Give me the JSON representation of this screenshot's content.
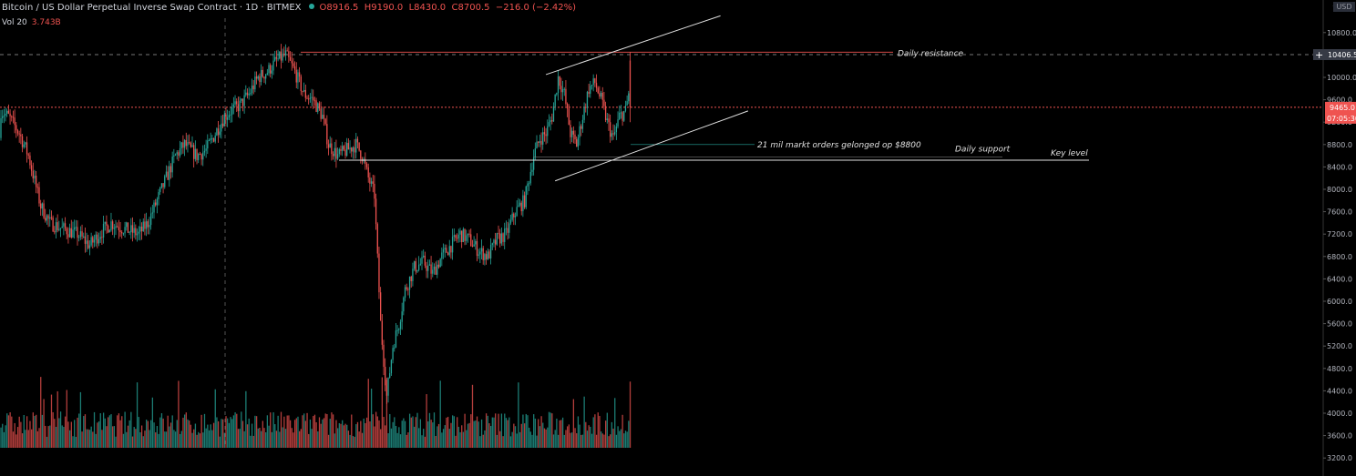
{
  "header": {
    "symbol_title": "Bitcoin / US Dollar Perpetual Inverse Swap Contract · 1D · BITMEX",
    "open": "O8916.5",
    "high": "H9190.0",
    "low": "L8430.0",
    "close": "C8700.5",
    "change": "−216.0 (−2.42%)"
  },
  "volume": {
    "label": "Vol 20",
    "value": "3.743B"
  },
  "currency_badge": "USD",
  "colors": {
    "up": "#26a69a",
    "down": "#ef5350",
    "background": "#000000",
    "line": "#e0e0e0"
  },
  "chart_data": {
    "type": "candlestick",
    "y_ticks": [
      10800.0,
      10400.0,
      10000.0,
      9600.0,
      9200.0,
      8800.0,
      8400.0,
      8000.0,
      7600.0,
      7200.0,
      6800.0,
      6400.0,
      6000.0,
      5600.0,
      5200.0,
      4800.0,
      4400.0,
      4000.0,
      3600.0,
      3200.0
    ],
    "y_tick_top": "1",
    "ylim": [
      3100,
      11200
    ],
    "y_scale": "linear",
    "price_labels": {
      "crosshair": "10406.5",
      "last": "9465.0",
      "countdown": "07:05:30"
    },
    "trend": {
      "start": 8916.5,
      "waypoints": [
        [
          0,
          9400
        ],
        [
          5,
          9300
        ],
        [
          12,
          9000
        ],
        [
          18,
          8600
        ],
        [
          26,
          7700
        ],
        [
          32,
          7400
        ],
        [
          40,
          7300
        ],
        [
          50,
          7200
        ],
        [
          58,
          7000
        ],
        [
          66,
          7250
        ],
        [
          72,
          7400
        ],
        [
          80,
          7300
        ],
        [
          90,
          7200
        ],
        [
          96,
          7400
        ],
        [
          102,
          7800
        ],
        [
          108,
          8200
        ],
        [
          114,
          8600
        ],
        [
          120,
          8800
        ],
        [
          128,
          8600
        ],
        [
          134,
          8700
        ],
        [
          140,
          9000
        ],
        [
          146,
          9300
        ],
        [
          150,
          9400
        ],
        [
          156,
          9500
        ],
        [
          162,
          9700
        ],
        [
          168,
          10000
        ],
        [
          174,
          10100
        ],
        [
          180,
          10300
        ],
        [
          186,
          10400
        ],
        [
          192,
          10100
        ],
        [
          198,
          9700
        ],
        [
          204,
          9600
        ],
        [
          210,
          9300
        ],
        [
          214,
          8800
        ],
        [
          220,
          8600
        ],
        [
          226,
          8700
        ],
        [
          232,
          8800
        ],
        [
          236,
          8600
        ],
        [
          240,
          8200
        ],
        [
          244,
          7900
        ],
        [
          248,
          5600
        ],
        [
          252,
          4300
        ],
        [
          256,
          5200
        ],
        [
          260,
          5600
        ],
        [
          264,
          6200
        ],
        [
          270,
          6600
        ],
        [
          276,
          6700
        ],
        [
          282,
          6500
        ],
        [
          288,
          6800
        ],
        [
          294,
          7000
        ],
        [
          300,
          7200
        ],
        [
          306,
          7100
        ],
        [
          312,
          6900
        ],
        [
          318,
          6800
        ],
        [
          324,
          7100
        ],
        [
          330,
          7200
        ],
        [
          336,
          7600
        ],
        [
          342,
          7800
        ],
        [
          348,
          8600
        ],
        [
          352,
          8900
        ],
        [
          356,
          9000
        ],
        [
          360,
          9300
        ],
        [
          364,
          10000
        ],
        [
          368,
          9700
        ],
        [
          372,
          9000
        ],
        [
          376,
          8800
        ],
        [
          380,
          9300
        ],
        [
          384,
          9800
        ],
        [
          388,
          9900
        ],
        [
          392,
          9600
        ],
        [
          396,
          9200
        ],
        [
          400,
          8900
        ],
        [
          404,
          9300
        ],
        [
          408,
          9400
        ],
        [
          410,
          9700
        ]
      ],
      "last_candle": {
        "o": 10300,
        "h": 10450,
        "l": 9200,
        "c": 9465
      }
    },
    "annotations": {
      "daily_resistance": {
        "text": "Daily resistance",
        "price": 10450
      },
      "key_level": {
        "text": "Key level",
        "price": 8520
      },
      "daily_support": {
        "text": "Daily support",
        "price": 8580
      },
      "market_orders": {
        "text": "21 mil markt orders gelonged op $8800",
        "price": 8800
      },
      "channel_upper": [
        [
          356,
          10050
        ],
        [
          470,
          11100
        ]
      ],
      "channel_lower": [
        [
          362,
          8150
        ],
        [
          488,
          9400
        ]
      ]
    }
  }
}
